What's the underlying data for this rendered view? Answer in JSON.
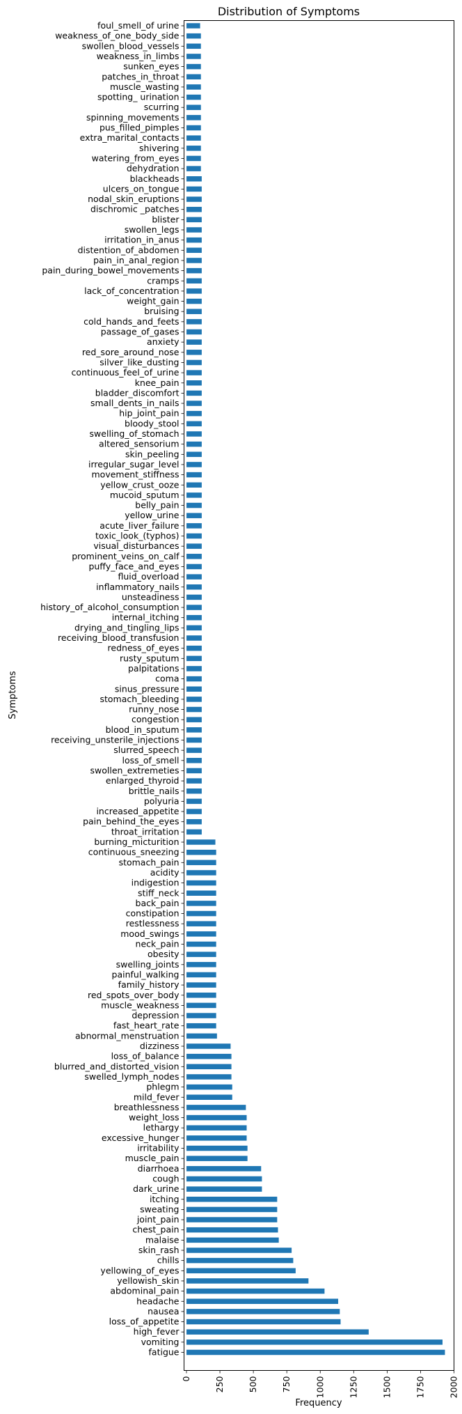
{
  "chart_data": {
    "type": "bar",
    "orientation": "horizontal",
    "title": "Distribution of Symptoms",
    "xlabel": "Frequency",
    "ylabel": "Symptoms",
    "xlim": [
      0,
      2030
    ],
    "xticks": [
      0,
      250,
      500,
      750,
      1000,
      1250,
      1500,
      1750,
      2000
    ],
    "bar_color": "#1f77b4",
    "grid": false,
    "categories": [
      "foul_smell_of urine",
      "weakness_of_one_body_side",
      "swollen_blood_vessels",
      "weakness_in_limbs",
      "sunken_eyes",
      "patches_in_throat",
      "muscle_wasting",
      "spotting_ urination",
      "scurring",
      "spinning_movements",
      "pus_filled_pimples",
      "extra_marital_contacts",
      "shivering",
      "watering_from_eyes",
      "dehydration",
      "blackheads",
      "ulcers_on_tongue",
      "nodal_skin_eruptions",
      "dischromic _patches",
      "blister",
      "swollen_legs",
      "irritation_in_anus",
      "distention_of_abdomen",
      "pain_in_anal_region",
      "pain_during_bowel_movements",
      "cramps",
      "lack_of_concentration",
      "weight_gain",
      "bruising",
      "cold_hands_and_feets",
      "passage_of_gases",
      "anxiety",
      "red_sore_around_nose",
      "silver_like_dusting",
      "continuous_feel_of_urine",
      "knee_pain",
      "bladder_discomfort",
      "small_dents_in_nails",
      "hip_joint_pain",
      "bloody_stool",
      "swelling_of_stomach",
      "altered_sensorium",
      "skin_peeling",
      "irregular_sugar_level",
      "movement_stiffness",
      "yellow_crust_ooze",
      "mucoid_sputum",
      "belly_pain",
      "yellow_urine",
      "acute_liver_failure",
      "toxic_look_(typhos)",
      "visual_disturbances",
      "prominent_veins_on_calf",
      "puffy_face_and_eyes",
      "fluid_overload",
      "inflammatory_nails",
      "unsteadiness",
      "history_of_alcohol_consumption",
      "internal_itching",
      "drying_and_tingling_lips",
      "receiving_blood_transfusion",
      "redness_of_eyes",
      "rusty_sputum",
      "palpitations",
      "coma",
      "sinus_pressure",
      "stomach_bleeding",
      "runny_nose",
      "congestion",
      "blood_in_sputum",
      "receiving_unsterile_injections",
      "slurred_speech",
      "loss_of_smell",
      "swollen_extremeties",
      "enlarged_thyroid",
      "brittle_nails",
      "polyuria",
      "increased_appetite",
      "pain_behind_the_eyes",
      "throat_irritation",
      "burning_micturition",
      "continuous_sneezing",
      "stomach_pain",
      "acidity",
      "indigestion",
      "stiff_neck",
      "back_pain",
      "constipation",
      "restlessness",
      "mood_swings",
      "neck_pain",
      "obesity",
      "swelling_joints",
      "painful_walking",
      "family_history",
      "red_spots_over_body",
      "muscle_weakness",
      "depression",
      "fast_heart_rate",
      "abnormal_menstruation",
      "dizziness",
      "loss_of_balance",
      "blurred_and_distorted_vision",
      "swelled_lymph_nodes",
      "phlegm",
      "mild_fever",
      "breathlessness",
      "weight_loss",
      "lethargy",
      "excessive_hunger",
      "irritability",
      "muscle_pain",
      "diarrhoea",
      "cough",
      "dark_urine",
      "itching",
      "sweating",
      "joint_pain",
      "chest_pain",
      "malaise",
      "skin_rash",
      "chills",
      "yellowing_of_eyes",
      "yellowish_skin",
      "abdominal_pain",
      "headache",
      "nausea",
      "loss_of_appetite",
      "high_fever",
      "vomiting",
      "fatigue"
    ],
    "values": [
      102,
      108,
      108,
      108,
      108,
      108,
      108,
      108,
      108,
      108,
      108,
      108,
      108,
      108,
      108,
      114,
      114,
      114,
      114,
      114,
      114,
      114,
      114,
      114,
      114,
      114,
      114,
      114,
      114,
      114,
      114,
      114,
      114,
      114,
      114,
      114,
      114,
      114,
      114,
      114,
      114,
      114,
      114,
      114,
      114,
      114,
      114,
      114,
      114,
      114,
      114,
      114,
      114,
      114,
      114,
      114,
      114,
      114,
      114,
      114,
      114,
      114,
      114,
      114,
      114,
      114,
      114,
      114,
      114,
      114,
      114,
      114,
      114,
      114,
      114,
      114,
      114,
      114,
      114,
      114,
      216,
      222,
      222,
      222,
      222,
      222,
      222,
      222,
      222,
      222,
      222,
      222,
      222,
      222,
      222,
      222,
      222,
      222,
      222,
      228,
      330,
      336,
      336,
      336,
      342,
      342,
      444,
      450,
      450,
      450,
      456,
      456,
      558,
      564,
      564,
      678,
      678,
      678,
      684,
      690,
      786,
      798,
      816,
      912,
      1032,
      1134,
      1146,
      1152,
      1362,
      1914,
      1932
    ]
  }
}
